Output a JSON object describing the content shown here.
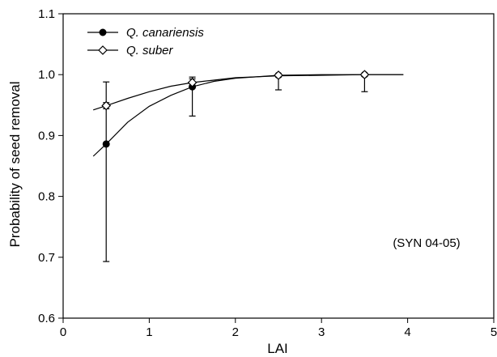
{
  "chart_data": {
    "type": "scatter",
    "title": "",
    "xlabel": "LAI",
    "ylabel": "Probability of seed removal",
    "xlim": [
      0,
      5
    ],
    "ylim": [
      0.6,
      1.1
    ],
    "xticks": [
      "0",
      "1",
      "2",
      "3",
      "4",
      "5"
    ],
    "yticks": [
      "0.6",
      "0.7",
      "0.8",
      "0.9",
      "1.0",
      "1.1"
    ],
    "grid": false,
    "legend_position": "top-left",
    "annotation": "(SYN 04-05)",
    "series": [
      {
        "name": "Q. canariensis",
        "marker": "filled-circle",
        "color": "#000000",
        "points": [
          {
            "x": 0.5,
            "y": 0.886,
            "err_low": 0.693,
            "err_high": 0.988
          },
          {
            "x": 1.5,
            "y": 0.98,
            "err_low": 0.932,
            "err_high": 0.993
          },
          {
            "x": 2.5,
            "y": 0.999,
            "err_low": 0.975,
            "err_high": 1.0
          },
          {
            "x": 3.5,
            "y": 1.0,
            "err_low": 0.972,
            "err_high": 1.0
          }
        ],
        "fit_curve": [
          {
            "x": 0.35,
            "y": 0.866
          },
          {
            "x": 0.5,
            "y": 0.886
          },
          {
            "x": 0.75,
            "y": 0.922
          },
          {
            "x": 1.0,
            "y": 0.948
          },
          {
            "x": 1.25,
            "y": 0.966
          },
          {
            "x": 1.5,
            "y": 0.98
          },
          {
            "x": 1.75,
            "y": 0.989
          },
          {
            "x": 2.0,
            "y": 0.994
          },
          {
            "x": 2.5,
            "y": 0.999
          },
          {
            "x": 3.0,
            "y": 1.0
          },
          {
            "x": 3.5,
            "y": 1.0
          },
          {
            "x": 3.95,
            "y": 1.0
          }
        ]
      },
      {
        "name": "Q. suber",
        "marker": "open-diamond",
        "color": "#000000",
        "points": [
          {
            "x": 0.5,
            "y": 0.949,
            "err_low": 0.944,
            "err_high": 0.954
          },
          {
            "x": 1.5,
            "y": 0.987,
            "err_low": 0.98,
            "err_high": 0.996
          },
          {
            "x": 2.5,
            "y": 0.999,
            "err_low": 0.996,
            "err_high": 1.0
          },
          {
            "x": 3.5,
            "y": 1.0,
            "err_low": 0.997,
            "err_high": 1.0
          }
        ],
        "fit_curve": [
          {
            "x": 0.35,
            "y": 0.942
          },
          {
            "x": 0.5,
            "y": 0.949
          },
          {
            "x": 0.75,
            "y": 0.961
          },
          {
            "x": 1.0,
            "y": 0.972
          },
          {
            "x": 1.25,
            "y": 0.981
          },
          {
            "x": 1.5,
            "y": 0.987
          },
          {
            "x": 1.75,
            "y": 0.991
          },
          {
            "x": 2.0,
            "y": 0.995
          },
          {
            "x": 2.5,
            "y": 0.998
          },
          {
            "x": 3.0,
            "y": 0.999
          },
          {
            "x": 3.5,
            "y": 1.0
          },
          {
            "x": 3.95,
            "y": 1.0
          }
        ]
      }
    ]
  }
}
